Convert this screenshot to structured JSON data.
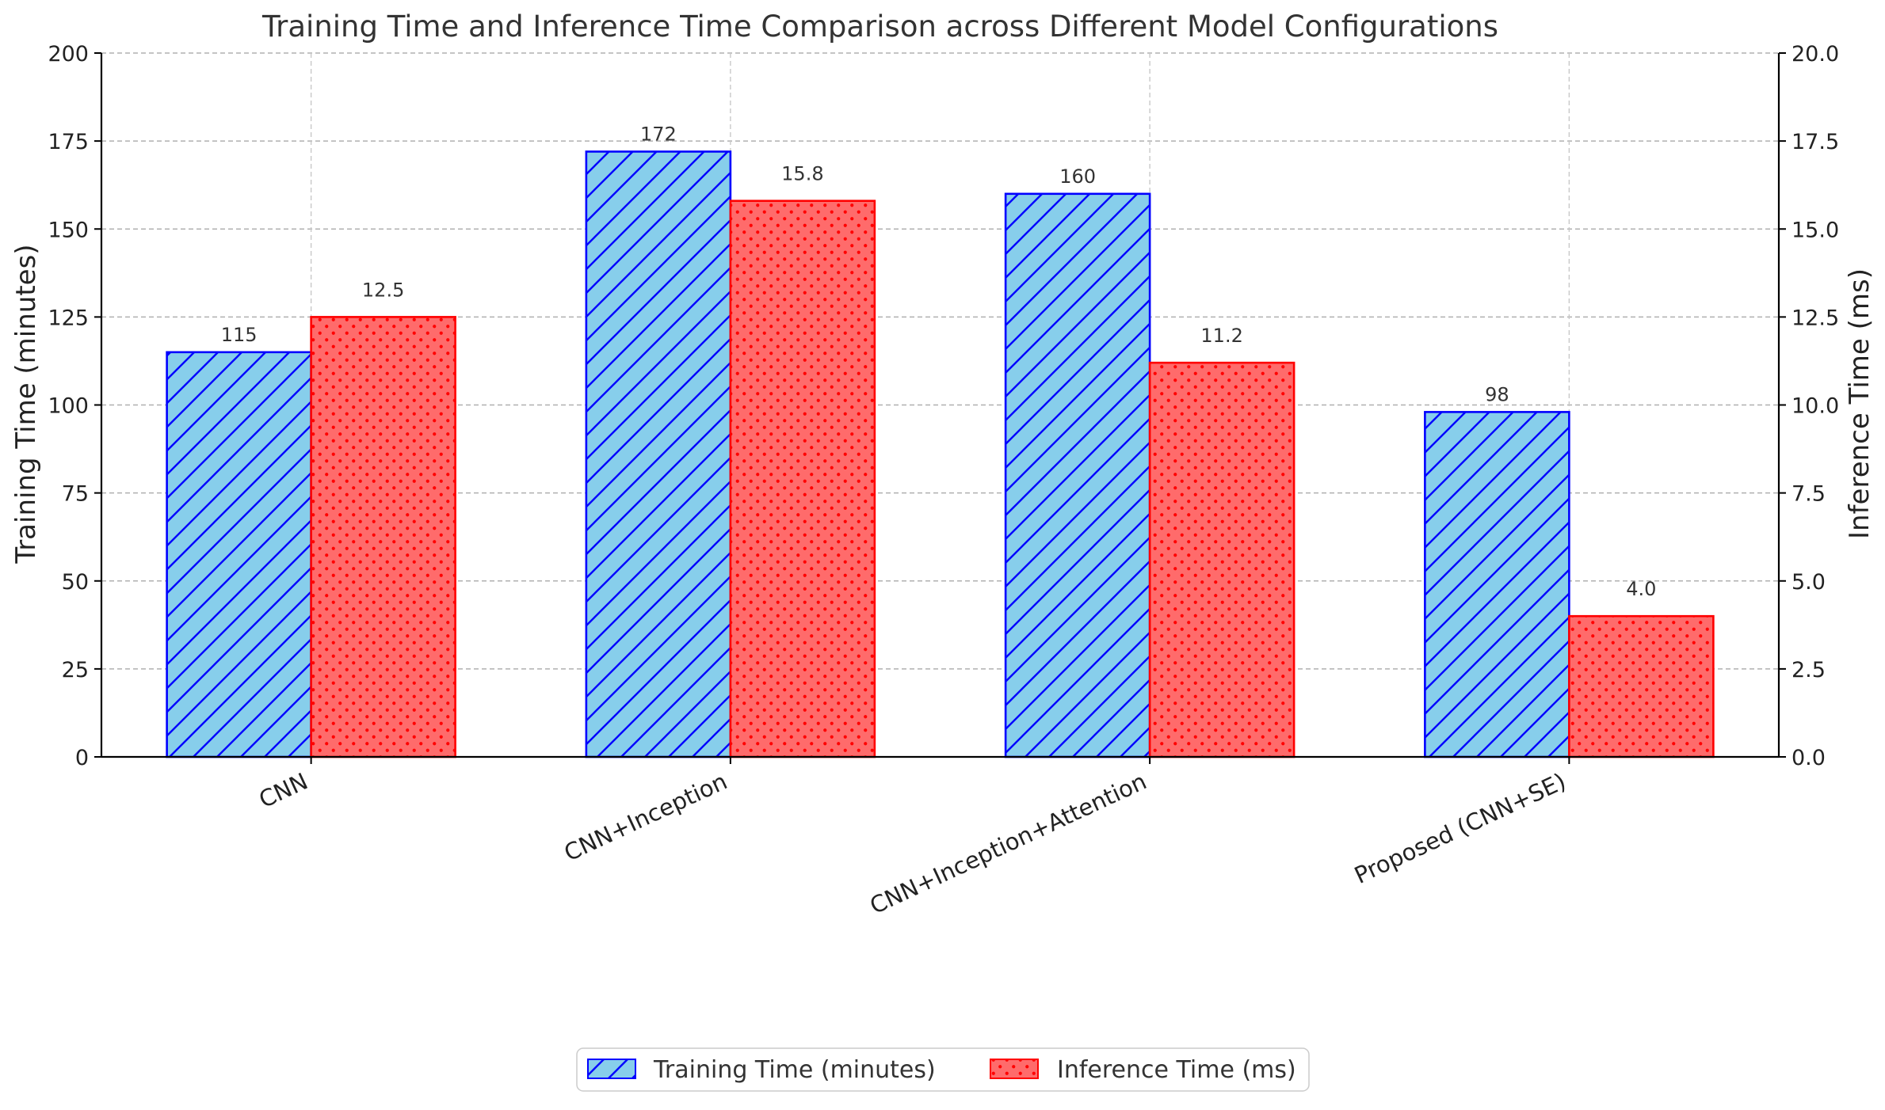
{
  "chart_data": {
    "type": "bar",
    "title": "Training Time and Inference Time Comparison across Different Model Configurations",
    "categories": [
      "CNN",
      "CNN+Inception",
      "CNN+Inception+Attention",
      "Proposed (CNN+SE)"
    ],
    "series": [
      {
        "name": "Training Time (minutes)",
        "axis": "left",
        "values": [
          115,
          172,
          160,
          98
        ],
        "labels": [
          "115",
          "172",
          "160",
          "98"
        ],
        "color": "#87CEEB",
        "edge_color": "#0000FF",
        "pattern": "diagonal-hatch"
      },
      {
        "name": "Inference Time (ms)",
        "axis": "right",
        "values": [
          12.5,
          15.8,
          11.2,
          4.0
        ],
        "labels": [
          "12.5",
          "15.8",
          "11.2",
          "4.0"
        ],
        "color": "#FF6B6B",
        "edge_color": "#FF0000",
        "pattern": "dots"
      }
    ],
    "ylabel_left": "Training Time (minutes)",
    "ylabel_right": "Inference Time (ms)",
    "ylim_left": [
      0,
      200
    ],
    "ylim_right": [
      0,
      20
    ],
    "yticks_left": [
      "0",
      "25",
      "50",
      "75",
      "100",
      "125",
      "150",
      "175",
      "200"
    ],
    "yticks_right": [
      "0.0",
      "2.5",
      "5.0",
      "7.5",
      "10.0",
      "12.5",
      "15.0",
      "17.5",
      "20.0"
    ],
    "grid": true,
    "legend_position": "bottom-center"
  }
}
